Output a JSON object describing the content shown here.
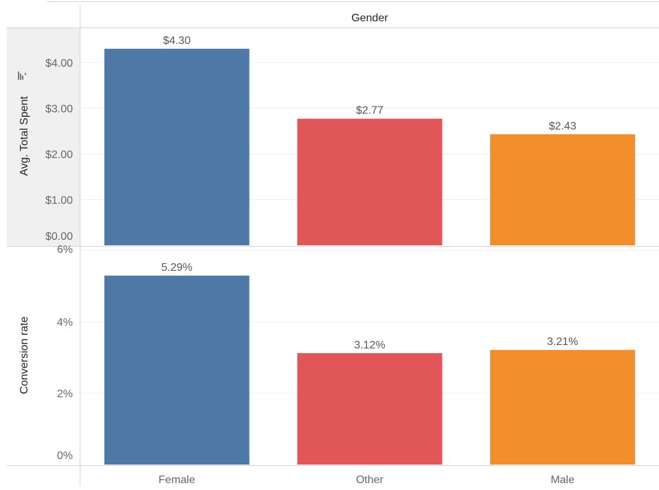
{
  "column_header": "Gender",
  "chart_data": [
    {
      "type": "bar",
      "ylabel": "Avg. Total Spent",
      "ylabel_active": true,
      "categories": [
        "Female",
        "Other",
        "Male"
      ],
      "values": [
        4.3,
        2.77,
        2.43
      ],
      "data_labels": [
        "$4.30",
        "$2.77",
        "$2.43"
      ],
      "ylim": [
        0,
        4.75
      ],
      "yticks": [
        0,
        1,
        2,
        3,
        4
      ],
      "ytick_labels": [
        "$0.00",
        "$1.00",
        "$2.00",
        "$3.00",
        "$4.00"
      ],
      "grid": true
    },
    {
      "type": "bar",
      "ylabel": "Conversion rate",
      "categories": [
        "Female",
        "Other",
        "Male"
      ],
      "values": [
        5.29,
        3.12,
        3.21
      ],
      "data_labels": [
        "5.29%",
        "3.12%",
        "3.21%"
      ],
      "ylim": [
        0,
        6.1
      ],
      "yticks": [
        0,
        2,
        4,
        6
      ],
      "ytick_labels": [
        "0%",
        "2%",
        "4%",
        "6%"
      ],
      "grid": true
    }
  ],
  "xtick_labels": [
    "Female",
    "Other",
    "Male"
  ],
  "colors": {
    "Female": "#4e79a7",
    "Other": "#e15759",
    "Male": "#f28e2b",
    "active_axis_bg": "#f0f0f0",
    "divider": "#d4d4d4",
    "gridline": "#eeeeee"
  },
  "icons": {
    "sort": "sort-descending-icon"
  }
}
